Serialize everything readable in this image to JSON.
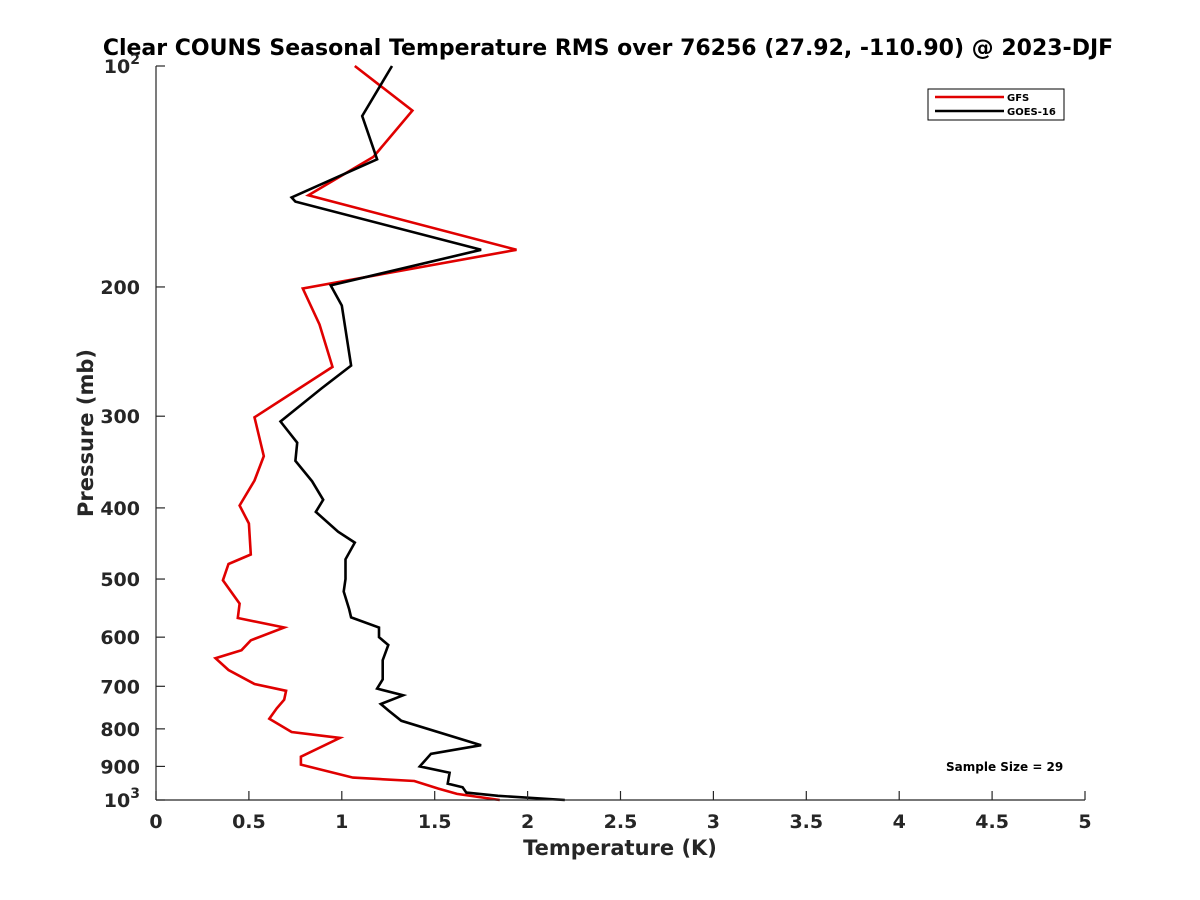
{
  "chart_data": {
    "type": "line",
    "title": "Clear COUNS Seasonal Temperature RMS over 76256 (27.92, -110.90) @ 2023-DJF",
    "xlabel": "Temperature (K)",
    "ylabel": "Pressure (mb)",
    "xlim": [
      0,
      5
    ],
    "ylim": [
      100,
      1000
    ],
    "yscale": "log",
    "yreversed": true,
    "xticks": [
      "0",
      "0.5",
      "1",
      "1.5",
      "2",
      "2.5",
      "3",
      "3.5",
      "4",
      "4.5",
      "5"
    ],
    "xtick_values": [
      0,
      0.5,
      1,
      1.5,
      2,
      2.5,
      3,
      3.5,
      4,
      4.5,
      5
    ],
    "yticks": [
      {
        "value": 100,
        "base": "10",
        "exp": "2"
      },
      {
        "value": 200,
        "label": "200"
      },
      {
        "value": 300,
        "label": "300"
      },
      {
        "value": 400,
        "label": "400"
      },
      {
        "value": 500,
        "label": "500"
      },
      {
        "value": 600,
        "label": "600"
      },
      {
        "value": 700,
        "label": "700"
      },
      {
        "value": 800,
        "label": "800"
      },
      {
        "value": 900,
        "label": "900"
      },
      {
        "value": 1000,
        "base": "10",
        "exp": "3"
      }
    ],
    "legend_position": "top-right",
    "annotation": "Sample Size = 29",
    "series": [
      {
        "name": "GFS",
        "color": "#e00000",
        "points": [
          [
            1.07,
            100
          ],
          [
            1.38,
            115
          ],
          [
            1.17,
            133
          ],
          [
            0.82,
            150
          ],
          [
            1.94,
            178
          ],
          [
            0.79,
            201
          ],
          [
            0.88,
            225
          ],
          [
            0.95,
            257
          ],
          [
            0.77,
            275
          ],
          [
            0.53,
            301
          ],
          [
            0.58,
            340
          ],
          [
            0.53,
            367
          ],
          [
            0.45,
            397
          ],
          [
            0.5,
            420
          ],
          [
            0.51,
            463
          ],
          [
            0.39,
            477
          ],
          [
            0.36,
            502
          ],
          [
            0.45,
            540
          ],
          [
            0.44,
            565
          ],
          [
            0.69,
            582
          ],
          [
            0.51,
            606
          ],
          [
            0.46,
            625
          ],
          [
            0.32,
            641
          ],
          [
            0.39,
            665
          ],
          [
            0.53,
            695
          ],
          [
            0.7,
            710
          ],
          [
            0.69,
            730
          ],
          [
            0.65,
            750
          ],
          [
            0.61,
            775
          ],
          [
            0.73,
            808
          ],
          [
            0.99,
            823
          ],
          [
            0.78,
            873
          ],
          [
            0.78,
            895
          ],
          [
            1.06,
            932
          ],
          [
            1.39,
            942
          ],
          [
            1.52,
            965
          ],
          [
            1.62,
            981
          ],
          [
            1.85,
            1000
          ]
        ]
      },
      {
        "name": "GOES-16",
        "color": "#000000",
        "points": [
          [
            1.27,
            100
          ],
          [
            1.11,
            117
          ],
          [
            1.19,
            134
          ],
          [
            0.73,
            151
          ],
          [
            0.75,
            153
          ],
          [
            1.75,
            178
          ],
          [
            0.94,
            199
          ],
          [
            1.0,
            212
          ],
          [
            1.05,
            256
          ],
          [
            0.89,
            275
          ],
          [
            0.67,
            305
          ],
          [
            0.76,
            326
          ],
          [
            0.75,
            345
          ],
          [
            0.84,
            368
          ],
          [
            0.9,
            390
          ],
          [
            0.86,
            405
          ],
          [
            0.98,
            431
          ],
          [
            1.07,
            446
          ],
          [
            1.02,
            470
          ],
          [
            1.02,
            500
          ],
          [
            1.01,
            520
          ],
          [
            1.04,
            550
          ],
          [
            1.05,
            564
          ],
          [
            1.2,
            582
          ],
          [
            1.2,
            600
          ],
          [
            1.25,
            615
          ],
          [
            1.22,
            645
          ],
          [
            1.22,
            685
          ],
          [
            1.19,
            705
          ],
          [
            1.33,
            720
          ],
          [
            1.21,
            740
          ],
          [
            1.25,
            755
          ],
          [
            1.32,
            780
          ],
          [
            1.75,
            842
          ],
          [
            1.48,
            865
          ],
          [
            1.44,
            888
          ],
          [
            1.42,
            900
          ],
          [
            1.58,
            918
          ],
          [
            1.57,
            950
          ],
          [
            1.65,
            961
          ],
          [
            1.67,
            977
          ],
          [
            1.84,
            987
          ],
          [
            2.2,
            1000
          ]
        ]
      }
    ]
  }
}
